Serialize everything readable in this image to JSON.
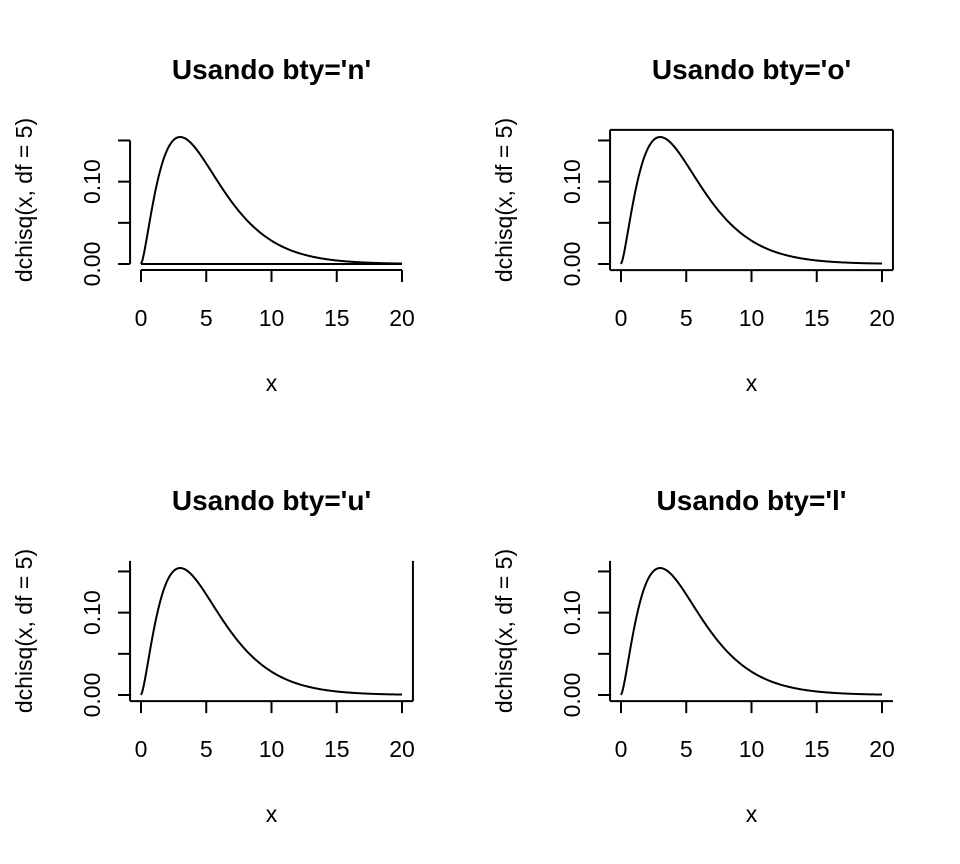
{
  "chart_data": [
    {
      "type": "line",
      "title": "Usando bty='n'",
      "bty": "n",
      "xlabel": "x",
      "ylabel": "dchisq(x, df = 5)",
      "xlim": [
        0,
        20
      ],
      "ylim": [
        0,
        0.1542
      ],
      "x_ticks": [
        0,
        5,
        10,
        15,
        20
      ],
      "y_ticks": [
        0,
        0.05,
        0.1,
        0.15
      ],
      "y_tick_labels": [
        "0.00",
        "",
        "0.10",
        ""
      ],
      "function": "dchisq(x, df = 5)",
      "series": [
        {
          "x": [
            0,
            0.5,
            1,
            1.5,
            2,
            2.5,
            3,
            3.5,
            4,
            4.5,
            5,
            6,
            7,
            8,
            9,
            10,
            11,
            12,
            13,
            14,
            15,
            16,
            17,
            18,
            19,
            20
          ],
          "values": [
            0,
            0.0366,
            0.0807,
            0.1158,
            0.1384,
            0.1499,
            0.1542,
            0.1526,
            0.1465,
            0.138,
            0.1282,
            0.1092,
            0.0892,
            0.0707,
            0.0547,
            0.0414,
            0.0309,
            0.0226,
            0.0163,
            0.0117,
            0.0083,
            0.0058,
            0.004,
            0.0028,
            0.0019,
            0.0013
          ]
        }
      ]
    },
    {
      "type": "line",
      "title": "Usando bty='o'",
      "bty": "o",
      "xlabel": "x",
      "ylabel": "dchisq(x, df = 5)",
      "xlim": [
        0,
        20
      ],
      "ylim": [
        0,
        0.1542
      ],
      "x_ticks": [
        0,
        5,
        10,
        15,
        20
      ],
      "y_ticks": [
        0,
        0.05,
        0.1,
        0.15
      ],
      "y_tick_labels": [
        "0.00",
        "",
        "0.10",
        ""
      ],
      "function": "dchisq(x, df = 5)",
      "series": [
        {
          "x": [
            0,
            0.5,
            1,
            1.5,
            2,
            2.5,
            3,
            3.5,
            4,
            4.5,
            5,
            6,
            7,
            8,
            9,
            10,
            11,
            12,
            13,
            14,
            15,
            16,
            17,
            18,
            19,
            20
          ],
          "values": [
            0,
            0.0366,
            0.0807,
            0.1158,
            0.1384,
            0.1499,
            0.1542,
            0.1526,
            0.1465,
            0.138,
            0.1282,
            0.1092,
            0.0892,
            0.0707,
            0.0547,
            0.0414,
            0.0309,
            0.0226,
            0.0163,
            0.0117,
            0.0083,
            0.0058,
            0.004,
            0.0028,
            0.0019,
            0.0013
          ]
        }
      ]
    },
    {
      "type": "line",
      "title": "Usando bty='u'",
      "bty": "u",
      "xlabel": "x",
      "ylabel": "dchisq(x, df = 5)",
      "xlim": [
        0,
        20
      ],
      "ylim": [
        0,
        0.1542
      ],
      "x_ticks": [
        0,
        5,
        10,
        15,
        20
      ],
      "y_ticks": [
        0,
        0.05,
        0.1,
        0.15
      ],
      "y_tick_labels": [
        "0.00",
        "",
        "0.10",
        ""
      ],
      "function": "dchisq(x, df = 5)",
      "series": [
        {
          "x": [
            0,
            0.5,
            1,
            1.5,
            2,
            2.5,
            3,
            3.5,
            4,
            4.5,
            5,
            6,
            7,
            8,
            9,
            10,
            11,
            12,
            13,
            14,
            15,
            16,
            17,
            18,
            19,
            20
          ],
          "values": [
            0,
            0.0366,
            0.0807,
            0.1158,
            0.1384,
            0.1499,
            0.1542,
            0.1526,
            0.1465,
            0.138,
            0.1282,
            0.1092,
            0.0892,
            0.0707,
            0.0547,
            0.0414,
            0.0309,
            0.0226,
            0.0163,
            0.0117,
            0.0083,
            0.0058,
            0.004,
            0.0028,
            0.0019,
            0.0013
          ]
        }
      ]
    },
    {
      "type": "line",
      "title": "Usando bty='l'",
      "bty": "l",
      "xlabel": "x",
      "ylabel": "dchisq(x, df = 5)",
      "xlim": [
        0,
        20
      ],
      "ylim": [
        0,
        0.1542
      ],
      "x_ticks": [
        0,
        5,
        10,
        15,
        20
      ],
      "y_ticks": [
        0,
        0.05,
        0.1,
        0.15
      ],
      "y_tick_labels": [
        "0.00",
        "",
        "0.10",
        ""
      ],
      "function": "dchisq(x, df = 5)",
      "series": [
        {
          "x": [
            0,
            0.5,
            1,
            1.5,
            2,
            2.5,
            3,
            3.5,
            4,
            4.5,
            5,
            6,
            7,
            8,
            9,
            10,
            11,
            12,
            13,
            14,
            15,
            16,
            17,
            18,
            19,
            20
          ],
          "values": [
            0,
            0.0366,
            0.0807,
            0.1158,
            0.1384,
            0.1499,
            0.1542,
            0.1526,
            0.1465,
            0.138,
            0.1282,
            0.1092,
            0.0892,
            0.0707,
            0.0547,
            0.0414,
            0.0309,
            0.0226,
            0.0163,
            0.0117,
            0.0083,
            0.0058,
            0.004,
            0.0028,
            0.0019,
            0.0013
          ]
        }
      ]
    }
  ]
}
